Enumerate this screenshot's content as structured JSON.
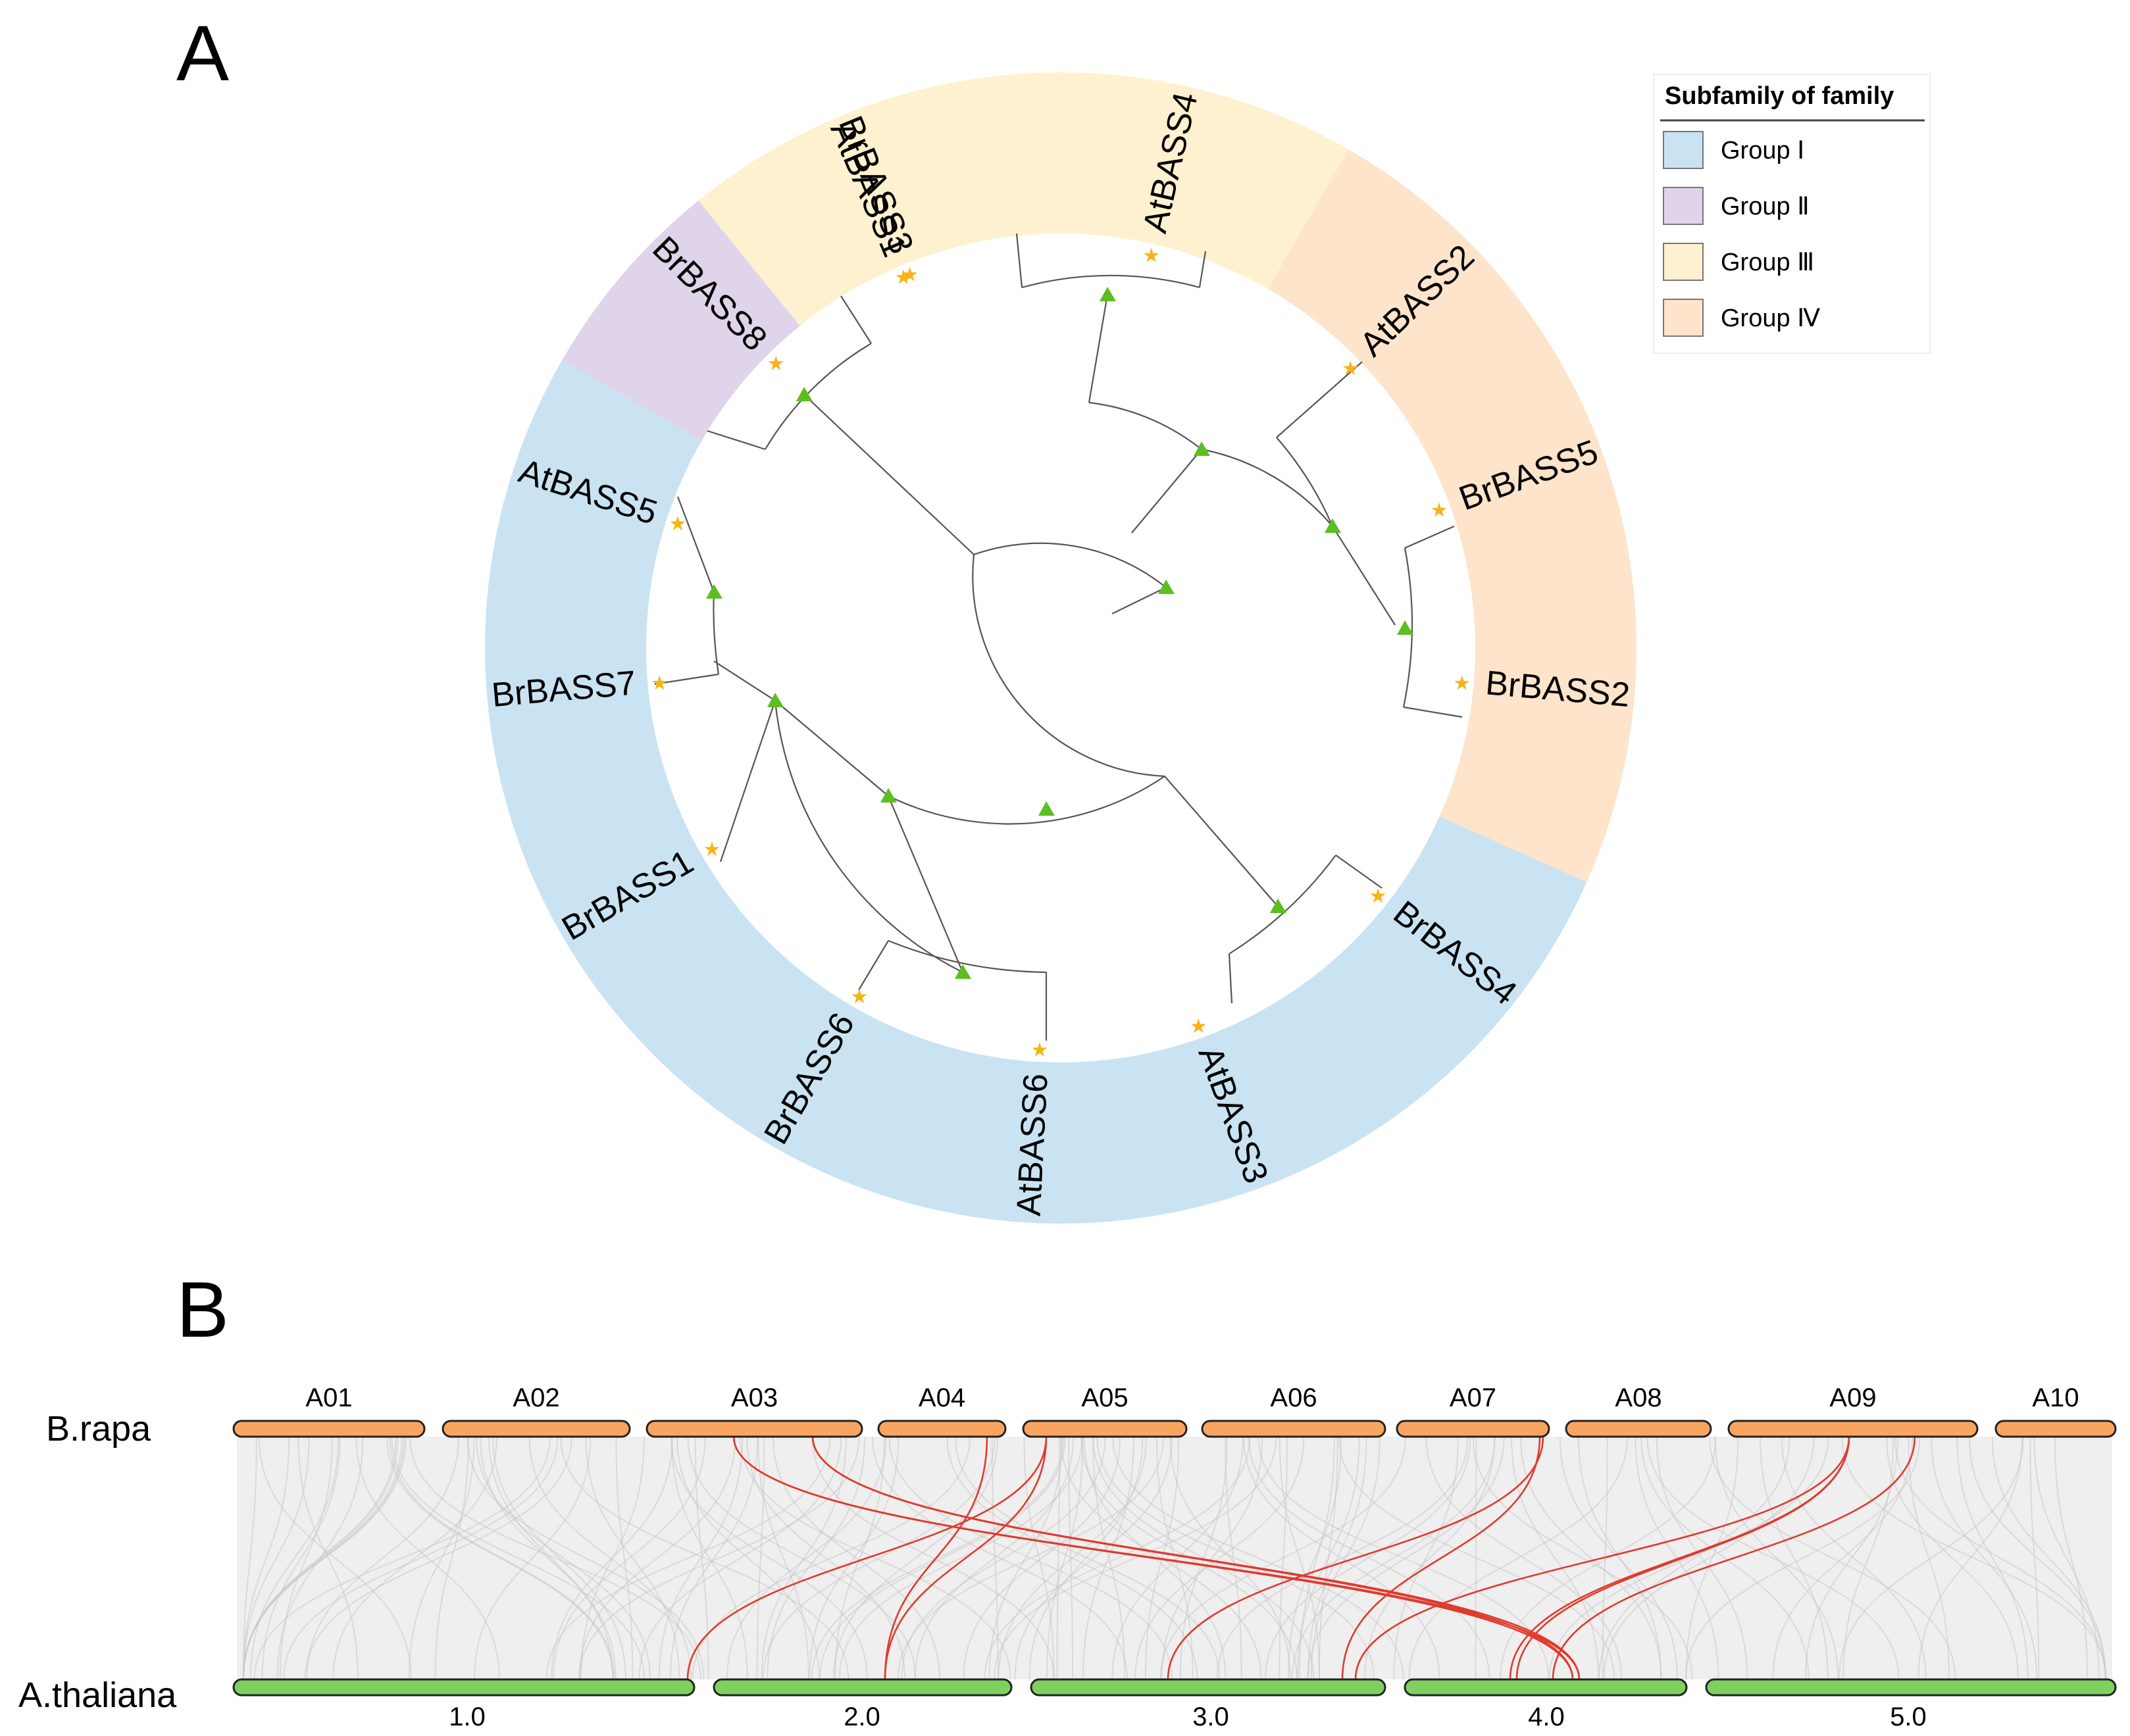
{
  "panel_a": {
    "letter": "A",
    "legend": {
      "title": "Subfamily of family",
      "items": [
        {
          "label": "Group Ⅰ",
          "color": "#c9e3f2"
        },
        {
          "label": "Group Ⅱ",
          "color": "#e0d4ea"
        },
        {
          "label": "Group Ⅲ",
          "color": "#fdf1cf"
        },
        {
          "label": "Group Ⅳ",
          "color": "#fde4cb"
        }
      ]
    },
    "leaves": [
      {
        "label": "BrBASS3",
        "group": 2
      },
      {
        "label": "AtBASS4",
        "group": 2
      },
      {
        "label": "AtBASS2",
        "group": 3
      },
      {
        "label": "BrBASS5",
        "group": 3
      },
      {
        "label": "BrBASS2",
        "group": 3
      },
      {
        "label": "BrBASS4",
        "group": 0
      },
      {
        "label": "AtBASS3",
        "group": 0
      },
      {
        "label": "AtBASS6",
        "group": 0
      },
      {
        "label": "BrBASS6",
        "group": 0
      },
      {
        "label": "BrBASS1",
        "group": 0
      },
      {
        "label": "BrBASS7",
        "group": 0
      },
      {
        "label": "AtBASS5",
        "group": 0
      },
      {
        "label": "BrBASS8",
        "group": 1
      },
      {
        "label": "AtBASS1",
        "group": 1
      }
    ],
    "node_color": "#5cbf1f",
    "leaf_marker_color": "#f6b41a"
  },
  "panel_b": {
    "letter": "B",
    "species_top": "B.rapa",
    "species_bottom": "A.thaliana",
    "top_chromosomes": [
      "A01",
      "A02",
      "A03",
      "A04",
      "A05",
      "A06",
      "A07",
      "A08",
      "A09",
      "A10"
    ],
    "bottom_chromosomes": [
      "1.0",
      "2.0",
      "3.0",
      "4.0",
      "5.0"
    ],
    "top_color": "#f9a55f",
    "bottom_color": "#7ed05f",
    "link_color": "#e03a2e"
  }
}
